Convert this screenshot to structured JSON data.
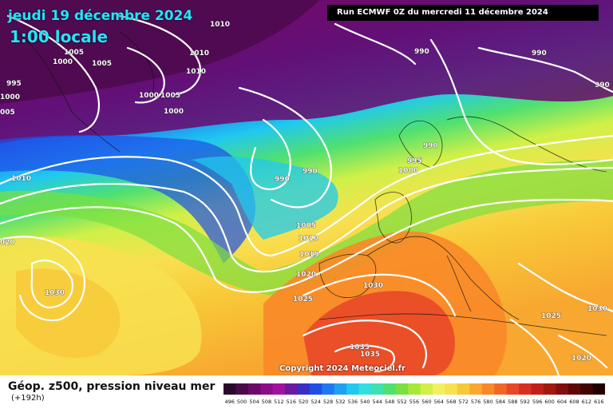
{
  "header": {
    "date": "jeudi 19 décembre 2024",
    "time": "1:00 locale",
    "run": "Run ECMWF 0Z du mercredi 11 décembre 2024"
  },
  "copyright": "Copyright 2024 Meteociel.fr",
  "footer": {
    "title": "Géop. z500, pression niveau mer",
    "lead": "(+192h)"
  },
  "legend": {
    "labels": [
      "496",
      "500",
      "504",
      "508",
      "512",
      "516",
      "520",
      "524",
      "528",
      "532",
      "536",
      "540",
      "544",
      "548",
      "552",
      "556",
      "560",
      "564",
      "568",
      "572",
      "576",
      "580",
      "584",
      "588",
      "592",
      "596",
      "600",
      "604",
      "608",
      "612",
      "616"
    ],
    "colors": [
      "#2a0a2a",
      "#4a0a4a",
      "#6a0a6a",
      "#8a0e8a",
      "#a012a0",
      "#6a1a9e",
      "#3a2fc2",
      "#1e50e8",
      "#1f78f0",
      "#20a0f0",
      "#20c8f0",
      "#30e0e0",
      "#40e0b0",
      "#50e070",
      "#7ae040",
      "#a8e838",
      "#d0f048",
      "#f0f060",
      "#f8e050",
      "#f8c838",
      "#f8a830",
      "#f88828",
      "#f06828",
      "#e84828",
      "#d83020",
      "#c02018",
      "#a01810",
      "#801010",
      "#600808",
      "#400404",
      "#200000"
    ]
  },
  "isobar_labels": [
    {
      "text": "1010"
    },
    {
      "text": "1005"
    },
    {
      "text": "1005"
    },
    {
      "text": "1000"
    },
    {
      "text": "995"
    },
    {
      "text": "1000"
    },
    {
      "text": "005"
    },
    {
      "text": "1010"
    },
    {
      "text": "1010"
    },
    {
      "text": "1000"
    },
    {
      "text": "1005"
    },
    {
      "text": "1000"
    },
    {
      "text": "990"
    },
    {
      "text": "990"
    },
    {
      "text": "990"
    },
    {
      "text": "990"
    },
    {
      "text": "990"
    },
    {
      "text": "995"
    },
    {
      "text": "1000"
    },
    {
      "text": "990"
    },
    {
      "text": "1010"
    },
    {
      "text": "020"
    },
    {
      "text": "1005"
    },
    {
      "text": "1010"
    },
    {
      "text": "1015"
    },
    {
      "text": "1020"
    },
    {
      "text": "1025"
    },
    {
      "text": "1030"
    },
    {
      "text": "1030"
    },
    {
      "text": "1030"
    },
    {
      "text": "1025"
    },
    {
      "text": "1020"
    },
    {
      "text": "1035"
    },
    {
      "text": "1035"
    }
  ]
}
